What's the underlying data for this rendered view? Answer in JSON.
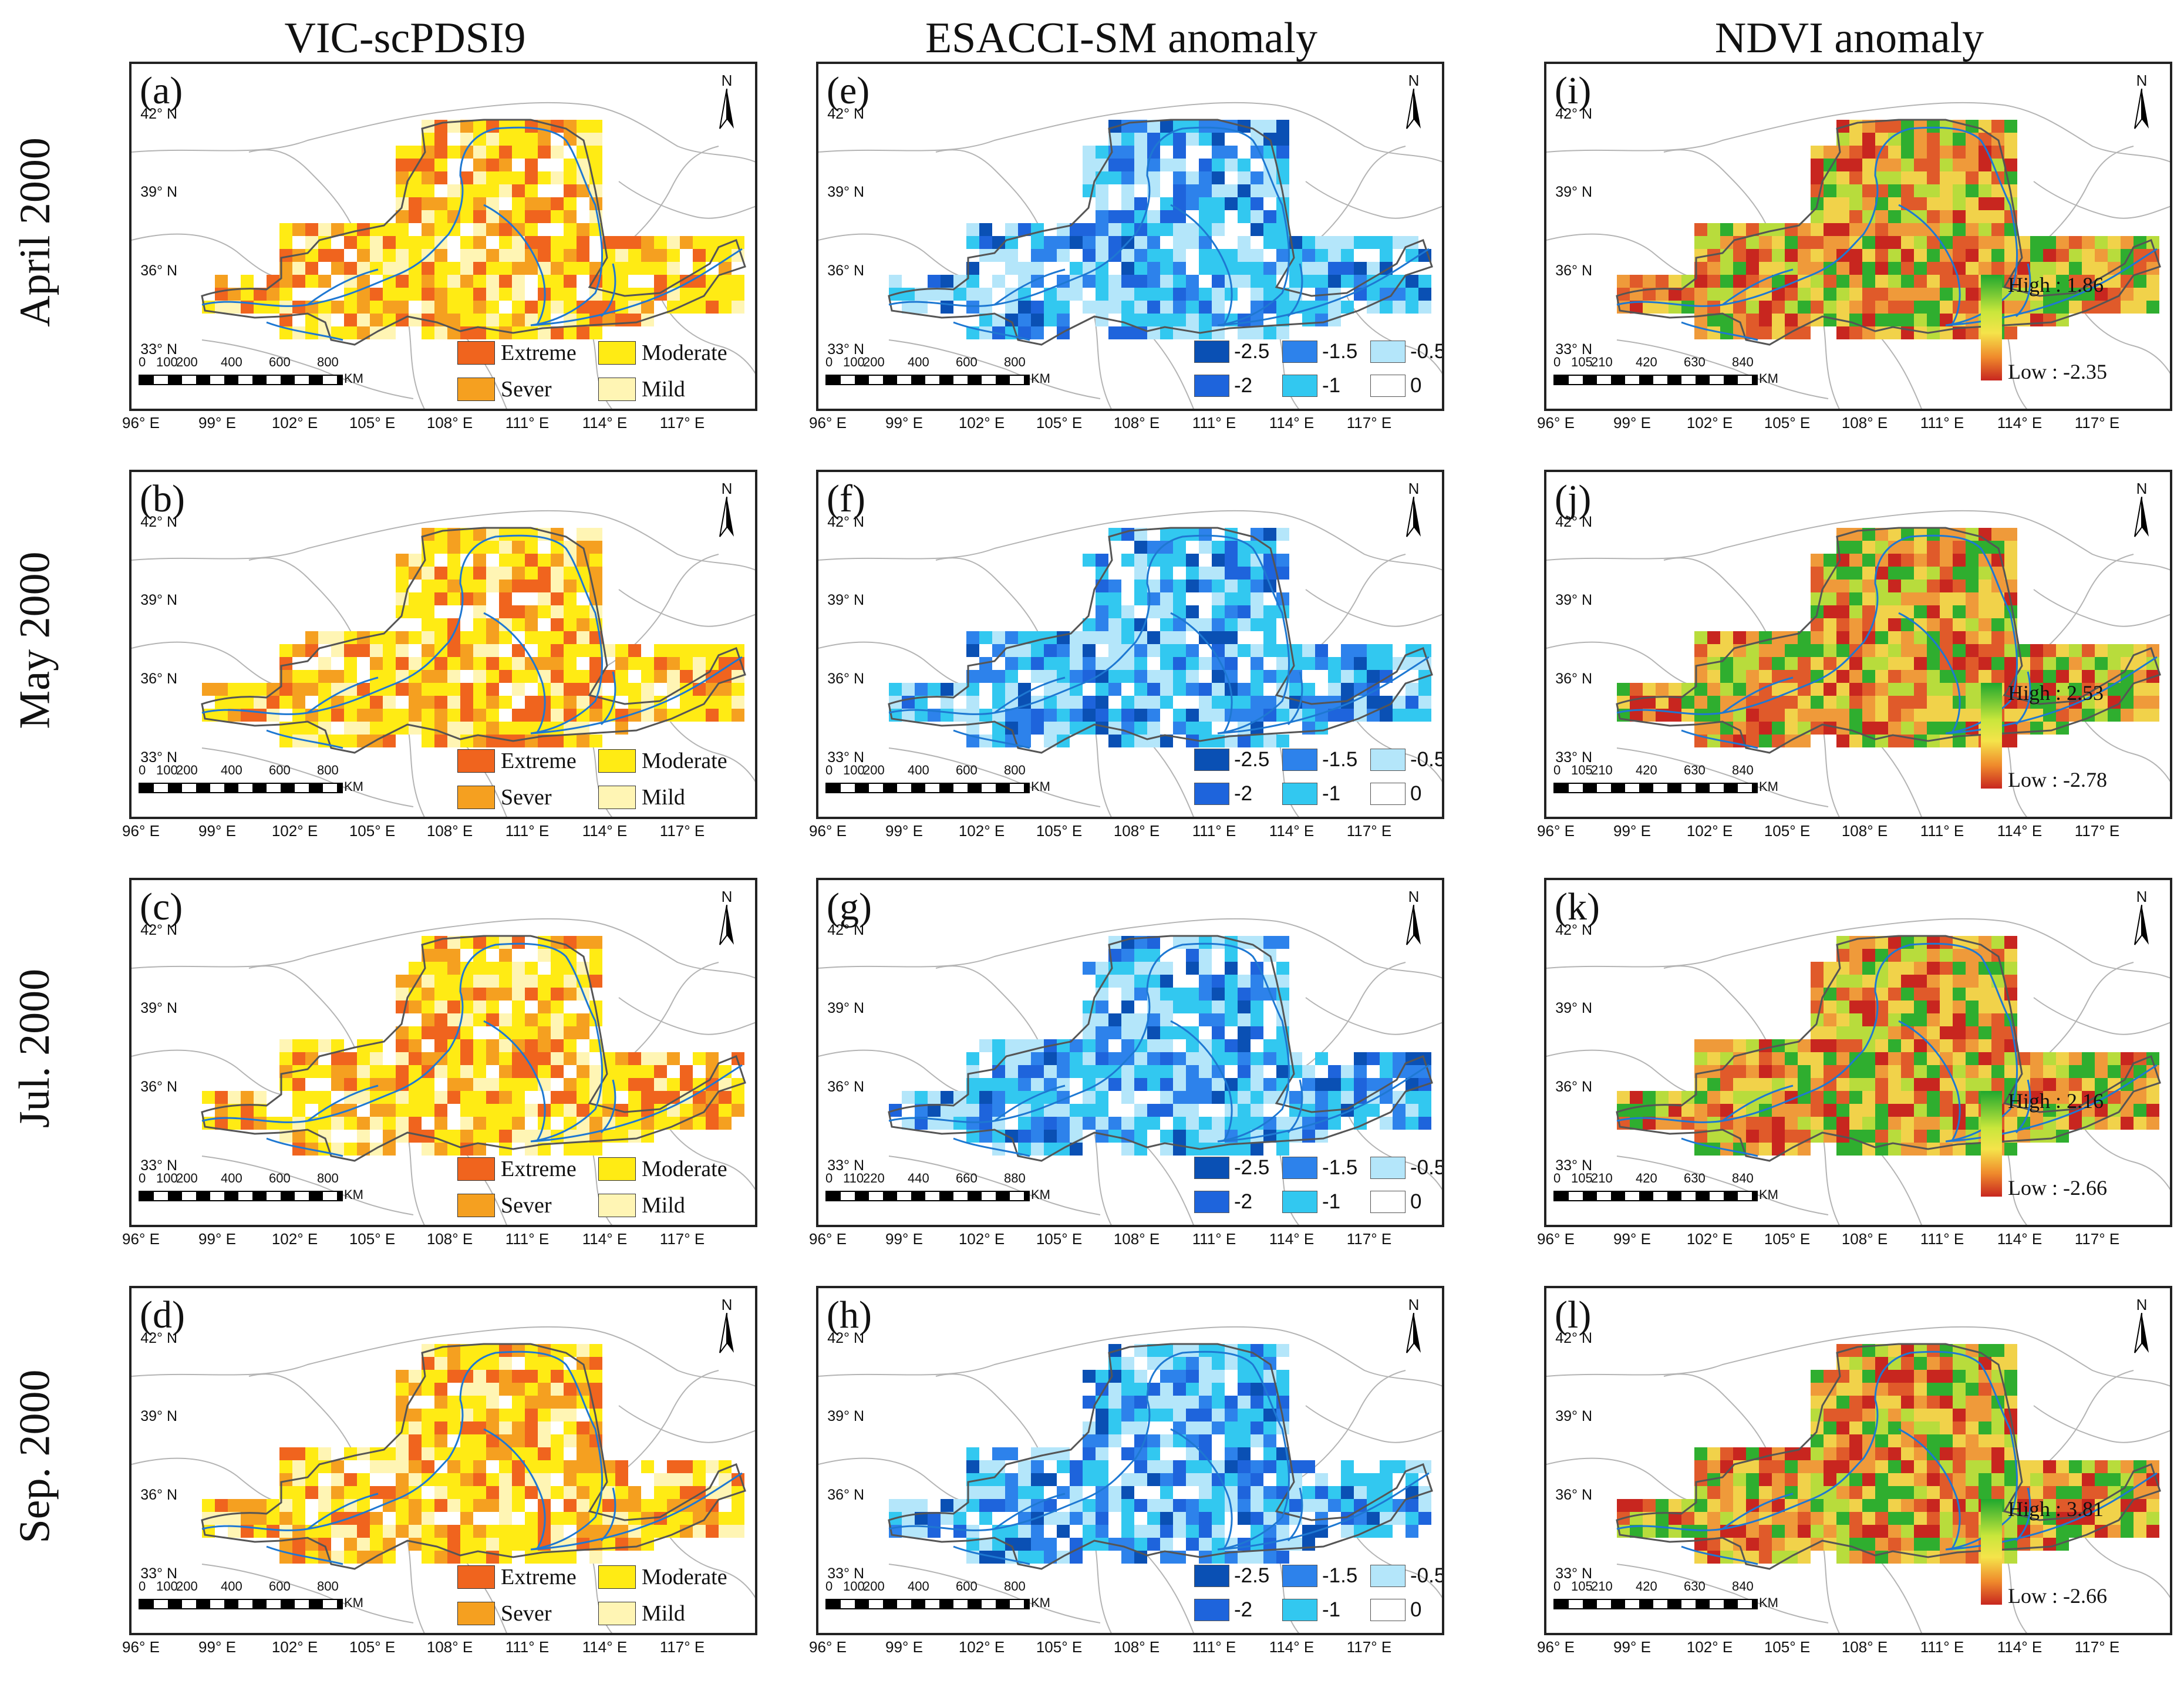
{
  "columns": [
    "VIC-scPDSI9",
    "ESACCI-SM anomaly",
    "NDVI anomaly"
  ],
  "rows": [
    "April 2000",
    "May 2000",
    "Jul. 2000",
    "Sep. 2000"
  ],
  "y_ticks": [
    "42° N",
    "39° N",
    "36° N",
    "33° N"
  ],
  "x_ticks": [
    "96° E",
    "99° E",
    "102° E",
    "105° E",
    "108° E",
    "111° E",
    "114° E",
    "117° E"
  ],
  "north_label": "N",
  "scale_unit": "KM",
  "scales": {
    "a": [
      "0",
      "100",
      "200",
      "400",
      "600",
      "800"
    ],
    "b": [
      "0",
      "100",
      "200",
      "400",
      "600",
      "800"
    ],
    "c": [
      "0",
      "100",
      "200",
      "400",
      "600",
      "800"
    ],
    "d": [
      "0",
      "100",
      "200",
      "400",
      "600",
      "800"
    ],
    "e": [
      "0",
      "100",
      "200",
      "400",
      "600",
      "800"
    ],
    "f": [
      "0",
      "100",
      "200",
      "400",
      "600",
      "800"
    ],
    "g": [
      "0",
      "110",
      "220",
      "440",
      "660",
      "880"
    ],
    "h": [
      "0",
      "100",
      "200",
      "400",
      "600",
      "800"
    ],
    "i": [
      "0",
      "105",
      "210",
      "420",
      "630",
      "840"
    ],
    "j": [
      "0",
      "105",
      "210",
      "420",
      "630",
      "840"
    ],
    "k": [
      "0",
      "105",
      "210",
      "420",
      "630",
      "840"
    ],
    "l": [
      "0",
      "105",
      "210",
      "420",
      "630",
      "840"
    ]
  },
  "panels": {
    "a": "(a)",
    "b": "(b)",
    "c": "(c)",
    "d": "(d)",
    "e": "(e)",
    "f": "(f)",
    "g": "(g)",
    "h": "(h)",
    "i": "(i)",
    "j": "(j)",
    "k": "(k)",
    "l": "(l)"
  },
  "drought_legend": {
    "extreme": "Extreme",
    "moderate": "Moderate",
    "sever": "Sever",
    "mild": "Mild",
    "colors": {
      "extreme": "#f0641e",
      "moderate": "#ffeb14",
      "sever": "#f5a020",
      "mild": "#fff5b4"
    }
  },
  "sm_legend": {
    "v1": "-2.5",
    "v2": "-1.5",
    "v3": "-0.5",
    "v4": "-2",
    "v5": "-1",
    "v6": "0",
    "colors": {
      "v1": "#0a50b4",
      "v2": "#2d82eb",
      "v3": "#b4e6fa",
      "v4": "#1e64dc",
      "v5": "#32c8f0",
      "v6": "#ffffff"
    }
  },
  "ndvi_legends": {
    "i": {
      "high": "High : 1.86",
      "low": "Low : -2.35"
    },
    "j": {
      "high": "High : 2.53",
      "low": "Low : -2.78"
    },
    "k": {
      "high": "High : 2.16",
      "low": "Low : -2.66"
    },
    "l": {
      "high": "High : 3.81",
      "low": "Low : -2.66"
    }
  }
}
